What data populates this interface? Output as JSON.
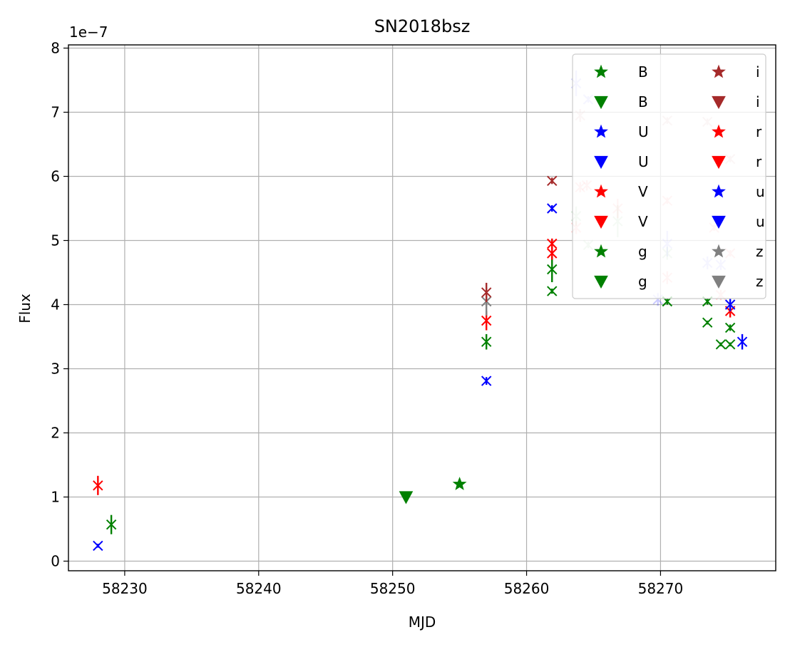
{
  "chart_data": {
    "type": "scatter",
    "title": "SN2018bsz",
    "xlabel": "MJD",
    "ylabel": "Flux",
    "y_scale_label": "1e−7",
    "xlim": [
      58225.8,
      58278.6
    ],
    "ylim": [
      -0.15,
      8.05
    ],
    "xticks": [
      58230,
      58240,
      58250,
      58260,
      58270
    ],
    "yticks": [
      0,
      1,
      2,
      3,
      4,
      5,
      6,
      7,
      8
    ],
    "grid": true,
    "legend_position": "top-right",
    "legend_columns": 2,
    "legend": [
      {
        "label": "B",
        "marker": "star",
        "color": "#008000"
      },
      {
        "label": "B",
        "marker": "triangle-down",
        "color": "#008000"
      },
      {
        "label": "U",
        "marker": "star",
        "color": "#0000ff"
      },
      {
        "label": "U",
        "marker": "triangle-down",
        "color": "#0000ff"
      },
      {
        "label": "V",
        "marker": "star",
        "color": "#ff0000"
      },
      {
        "label": "V",
        "marker": "triangle-down",
        "color": "#ff0000"
      },
      {
        "label": "g",
        "marker": "star",
        "color": "#008000"
      },
      {
        "label": "g",
        "marker": "triangle-down",
        "color": "#008000"
      },
      {
        "label": "i",
        "marker": "star",
        "color": "#a52a2a"
      },
      {
        "label": "i",
        "marker": "triangle-down",
        "color": "#a52a2a"
      },
      {
        "label": "r",
        "marker": "star",
        "color": "#ff0000"
      },
      {
        "label": "r",
        "marker": "triangle-down",
        "color": "#ff0000"
      },
      {
        "label": "u",
        "marker": "star",
        "color": "#0000ff"
      },
      {
        "label": "u",
        "marker": "triangle-down",
        "color": "#0000ff"
      },
      {
        "label": "z",
        "marker": "star",
        "color": "#808080"
      },
      {
        "label": "z",
        "marker": "triangle-down",
        "color": "#808080"
      }
    ],
    "points": [
      {
        "x": 58228.0,
        "y": 1.18,
        "err": 0.15,
        "color": "#ff0000",
        "marker": "x",
        "alpha": 1
      },
      {
        "x": 58228.0,
        "y": 0.24,
        "err": 0.03,
        "color": "#0000ff",
        "marker": "x",
        "alpha": 1
      },
      {
        "x": 58229.0,
        "y": 0.57,
        "err": 0.15,
        "color": "#008000",
        "marker": "x",
        "alpha": 1
      },
      {
        "x": 58251.0,
        "y": 1.0,
        "err": 0,
        "color": "#008000",
        "marker": "triangle-down",
        "alpha": 1
      },
      {
        "x": 58255.0,
        "y": 1.2,
        "err": 0.05,
        "color": "#008000",
        "marker": "star",
        "alpha": 1
      },
      {
        "x": 58257.0,
        "y": 2.81,
        "err": 0.06,
        "color": "#0000ff",
        "marker": "x",
        "alpha": 1
      },
      {
        "x": 58257.0,
        "y": 3.42,
        "err": 0.12,
        "color": "#008000",
        "marker": "x",
        "alpha": 1
      },
      {
        "x": 58257.0,
        "y": 3.75,
        "err": 0.15,
        "color": "#ff0000",
        "marker": "x",
        "alpha": 1
      },
      {
        "x": 58257.0,
        "y": 4.05,
        "err": 0.22,
        "color": "#808080",
        "marker": "x",
        "alpha": 1
      },
      {
        "x": 58257.0,
        "y": 4.19,
        "err": 0.15,
        "color": "#a52a2a",
        "marker": "x",
        "alpha": 1
      },
      {
        "x": 58261.9,
        "y": 4.21,
        "err": 0.04,
        "color": "#008000",
        "marker": "x",
        "alpha": 1
      },
      {
        "x": 58261.9,
        "y": 4.55,
        "err": 0.2,
        "color": "#008000",
        "marker": "x",
        "alpha": 1
      },
      {
        "x": 58261.9,
        "y": 4.8,
        "err": 0.1,
        "color": "#ff0000",
        "marker": "x",
        "alpha": 1
      },
      {
        "x": 58261.9,
        "y": 4.95,
        "err": 0.08,
        "color": "#ff0000",
        "marker": "x",
        "alpha": 1
      },
      {
        "x": 58261.9,
        "y": 5.5,
        "err": 0.05,
        "color": "#0000ff",
        "marker": "x",
        "alpha": 1
      },
      {
        "x": 58261.9,
        "y": 5.93,
        "err": 0.05,
        "color": "#a52a2a",
        "marker": "x",
        "alpha": 1
      },
      {
        "x": 58263.7,
        "y": 5.38,
        "err": 0.15,
        "color": "#008000",
        "marker": "x",
        "alpha": 0.2
      },
      {
        "x": 58263.7,
        "y": 5.2,
        "err": 0.1,
        "color": "#ff0000",
        "marker": "x",
        "alpha": 0.2
      },
      {
        "x": 58263.7,
        "y": 7.45,
        "err": 0.2,
        "color": "#0000ff",
        "marker": "x",
        "alpha": 0.2
      },
      {
        "x": 58264.0,
        "y": 6.95,
        "err": 0.1,
        "color": "#a52a2a",
        "marker": "x",
        "alpha": 0.2
      },
      {
        "x": 58264.0,
        "y": 5.83,
        "err": 0.08,
        "color": "#ff0000",
        "marker": "x",
        "alpha": 0.2
      },
      {
        "x": 58264.5,
        "y": 5.86,
        "err": 0.08,
        "color": "#ff0000",
        "marker": "x",
        "alpha": 0.2
      },
      {
        "x": 58264.6,
        "y": 4.93,
        "err": 0.05,
        "color": "#008000",
        "marker": "x",
        "alpha": 0.2
      },
      {
        "x": 58264.6,
        "y": 7.2,
        "err": 0.05,
        "color": "#0000ff",
        "marker": "x",
        "alpha": 0.2
      },
      {
        "x": 58266.8,
        "y": 5.3,
        "err": 0.25,
        "color": "#008000",
        "marker": "x",
        "alpha": 0.2
      },
      {
        "x": 58266.8,
        "y": 5.5,
        "err": 0.15,
        "color": "#ff0000",
        "marker": "x",
        "alpha": 0.2
      },
      {
        "x": 58269.8,
        "y": 4.08,
        "err": 0.1,
        "color": "#0000ff",
        "marker": "x",
        "alpha": 0.2
      },
      {
        "x": 58270.5,
        "y": 4.05,
        "err": 0.05,
        "color": "#008000",
        "marker": "x",
        "alpha": 1
      },
      {
        "x": 58270.5,
        "y": 4.8,
        "err": 0.1,
        "color": "#008000",
        "marker": "x",
        "alpha": 0.2
      },
      {
        "x": 58270.5,
        "y": 4.95,
        "err": 0.2,
        "color": "#0000ff",
        "marker": "x",
        "alpha": 0.2
      },
      {
        "x": 58270.5,
        "y": 4.42,
        "err": 0.1,
        "color": "#ff0000",
        "marker": "x",
        "alpha": 0.2
      },
      {
        "x": 58270.5,
        "y": 5.62,
        "err": 0.05,
        "color": "#ff0000",
        "marker": "x",
        "alpha": 0.2
      },
      {
        "x": 58270.5,
        "y": 6.87,
        "err": 0.05,
        "color": "#a52a2a",
        "marker": "x",
        "alpha": 0.2
      },
      {
        "x": 58273.5,
        "y": 3.72,
        "err": 0.03,
        "color": "#008000",
        "marker": "x",
        "alpha": 1
      },
      {
        "x": 58273.5,
        "y": 4.05,
        "err": 0.05,
        "color": "#008000",
        "marker": "x",
        "alpha": 1
      },
      {
        "x": 58273.5,
        "y": 4.65,
        "err": 0.1,
        "color": "#0000ff",
        "marker": "x",
        "alpha": 0.2
      },
      {
        "x": 58273.5,
        "y": 6.85,
        "err": 0.05,
        "color": "#a52a2a",
        "marker": "x",
        "alpha": 0.2
      },
      {
        "x": 58274.0,
        "y": 5.2,
        "err": 0.05,
        "color": "#ff0000",
        "marker": "x",
        "alpha": 0.2
      },
      {
        "x": 58274.5,
        "y": 3.38,
        "err": 0.03,
        "color": "#008000",
        "marker": "x",
        "alpha": 1
      },
      {
        "x": 58274.5,
        "y": 4.15,
        "err": 0.08,
        "color": "#ff0000",
        "marker": "x",
        "alpha": 0.2
      },
      {
        "x": 58274.5,
        "y": 4.62,
        "err": 0.08,
        "color": "#0000ff",
        "marker": "x",
        "alpha": 0.2
      },
      {
        "x": 58275.2,
        "y": 3.38,
        "err": 0.03,
        "color": "#008000",
        "marker": "x",
        "alpha": 1
      },
      {
        "x": 58275.2,
        "y": 3.64,
        "err": 0.05,
        "color": "#008000",
        "marker": "x",
        "alpha": 1
      },
      {
        "x": 58275.2,
        "y": 3.9,
        "err": 0.1,
        "color": "#ff0000",
        "marker": "x",
        "alpha": 1
      },
      {
        "x": 58275.2,
        "y": 4.0,
        "err": 0.1,
        "color": "#0000ff",
        "marker": "x",
        "alpha": 1
      },
      {
        "x": 58275.2,
        "y": 4.8,
        "err": 0.05,
        "color": "#ff0000",
        "marker": "x",
        "alpha": 0.2
      },
      {
        "x": 58275.2,
        "y": 6.27,
        "err": 0.05,
        "color": "#a52a2a",
        "marker": "x",
        "alpha": 0.2
      },
      {
        "x": 58276.1,
        "y": 3.42,
        "err": 0.12,
        "color": "#0000ff",
        "marker": "x",
        "alpha": 1
      }
    ]
  }
}
